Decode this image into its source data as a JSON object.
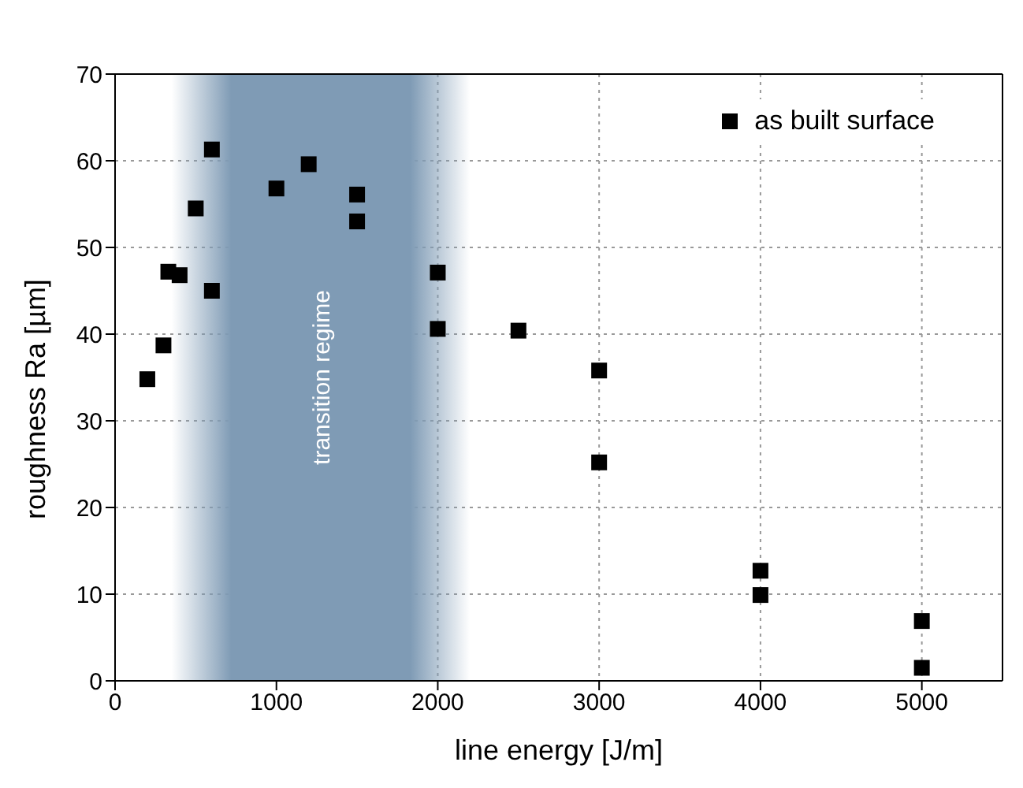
{
  "chart_data": {
    "type": "scatter",
    "xlabel": "line energy [J/m]",
    "ylabel": "roughness Ra [µm]",
    "x": [
      200,
      300,
      330,
      400,
      500,
      600,
      600,
      1000,
      1200,
      1500,
      1500,
      2000,
      2000,
      2500,
      3000,
      3000,
      4000,
      4000,
      5000,
      5000
    ],
    "series": [
      {
        "name": "as built surface",
        "color": "#000000",
        "values": [
          34.8,
          38.7,
          47.2,
          46.8,
          54.5,
          61.3,
          45.0,
          56.8,
          59.6,
          56.1,
          53.0,
          47.1,
          40.6,
          40.4,
          35.8,
          25.2,
          12.7,
          9.9,
          6.9,
          1.5
        ]
      }
    ],
    "xlim": [
      0,
      5500
    ],
    "xticks": [
      0,
      1000,
      2000,
      3000,
      4000,
      5000
    ],
    "ylim": [
      0,
      70
    ],
    "yticks": [
      0,
      10,
      20,
      30,
      40,
      50,
      60,
      70
    ],
    "bands": [
      {
        "axis": "x",
        "from": 350,
        "to": 2200,
        "label": "transition regime",
        "color": "#7f9bb5"
      }
    ],
    "grid": true,
    "legend": "top right",
    "marker": "square"
  }
}
